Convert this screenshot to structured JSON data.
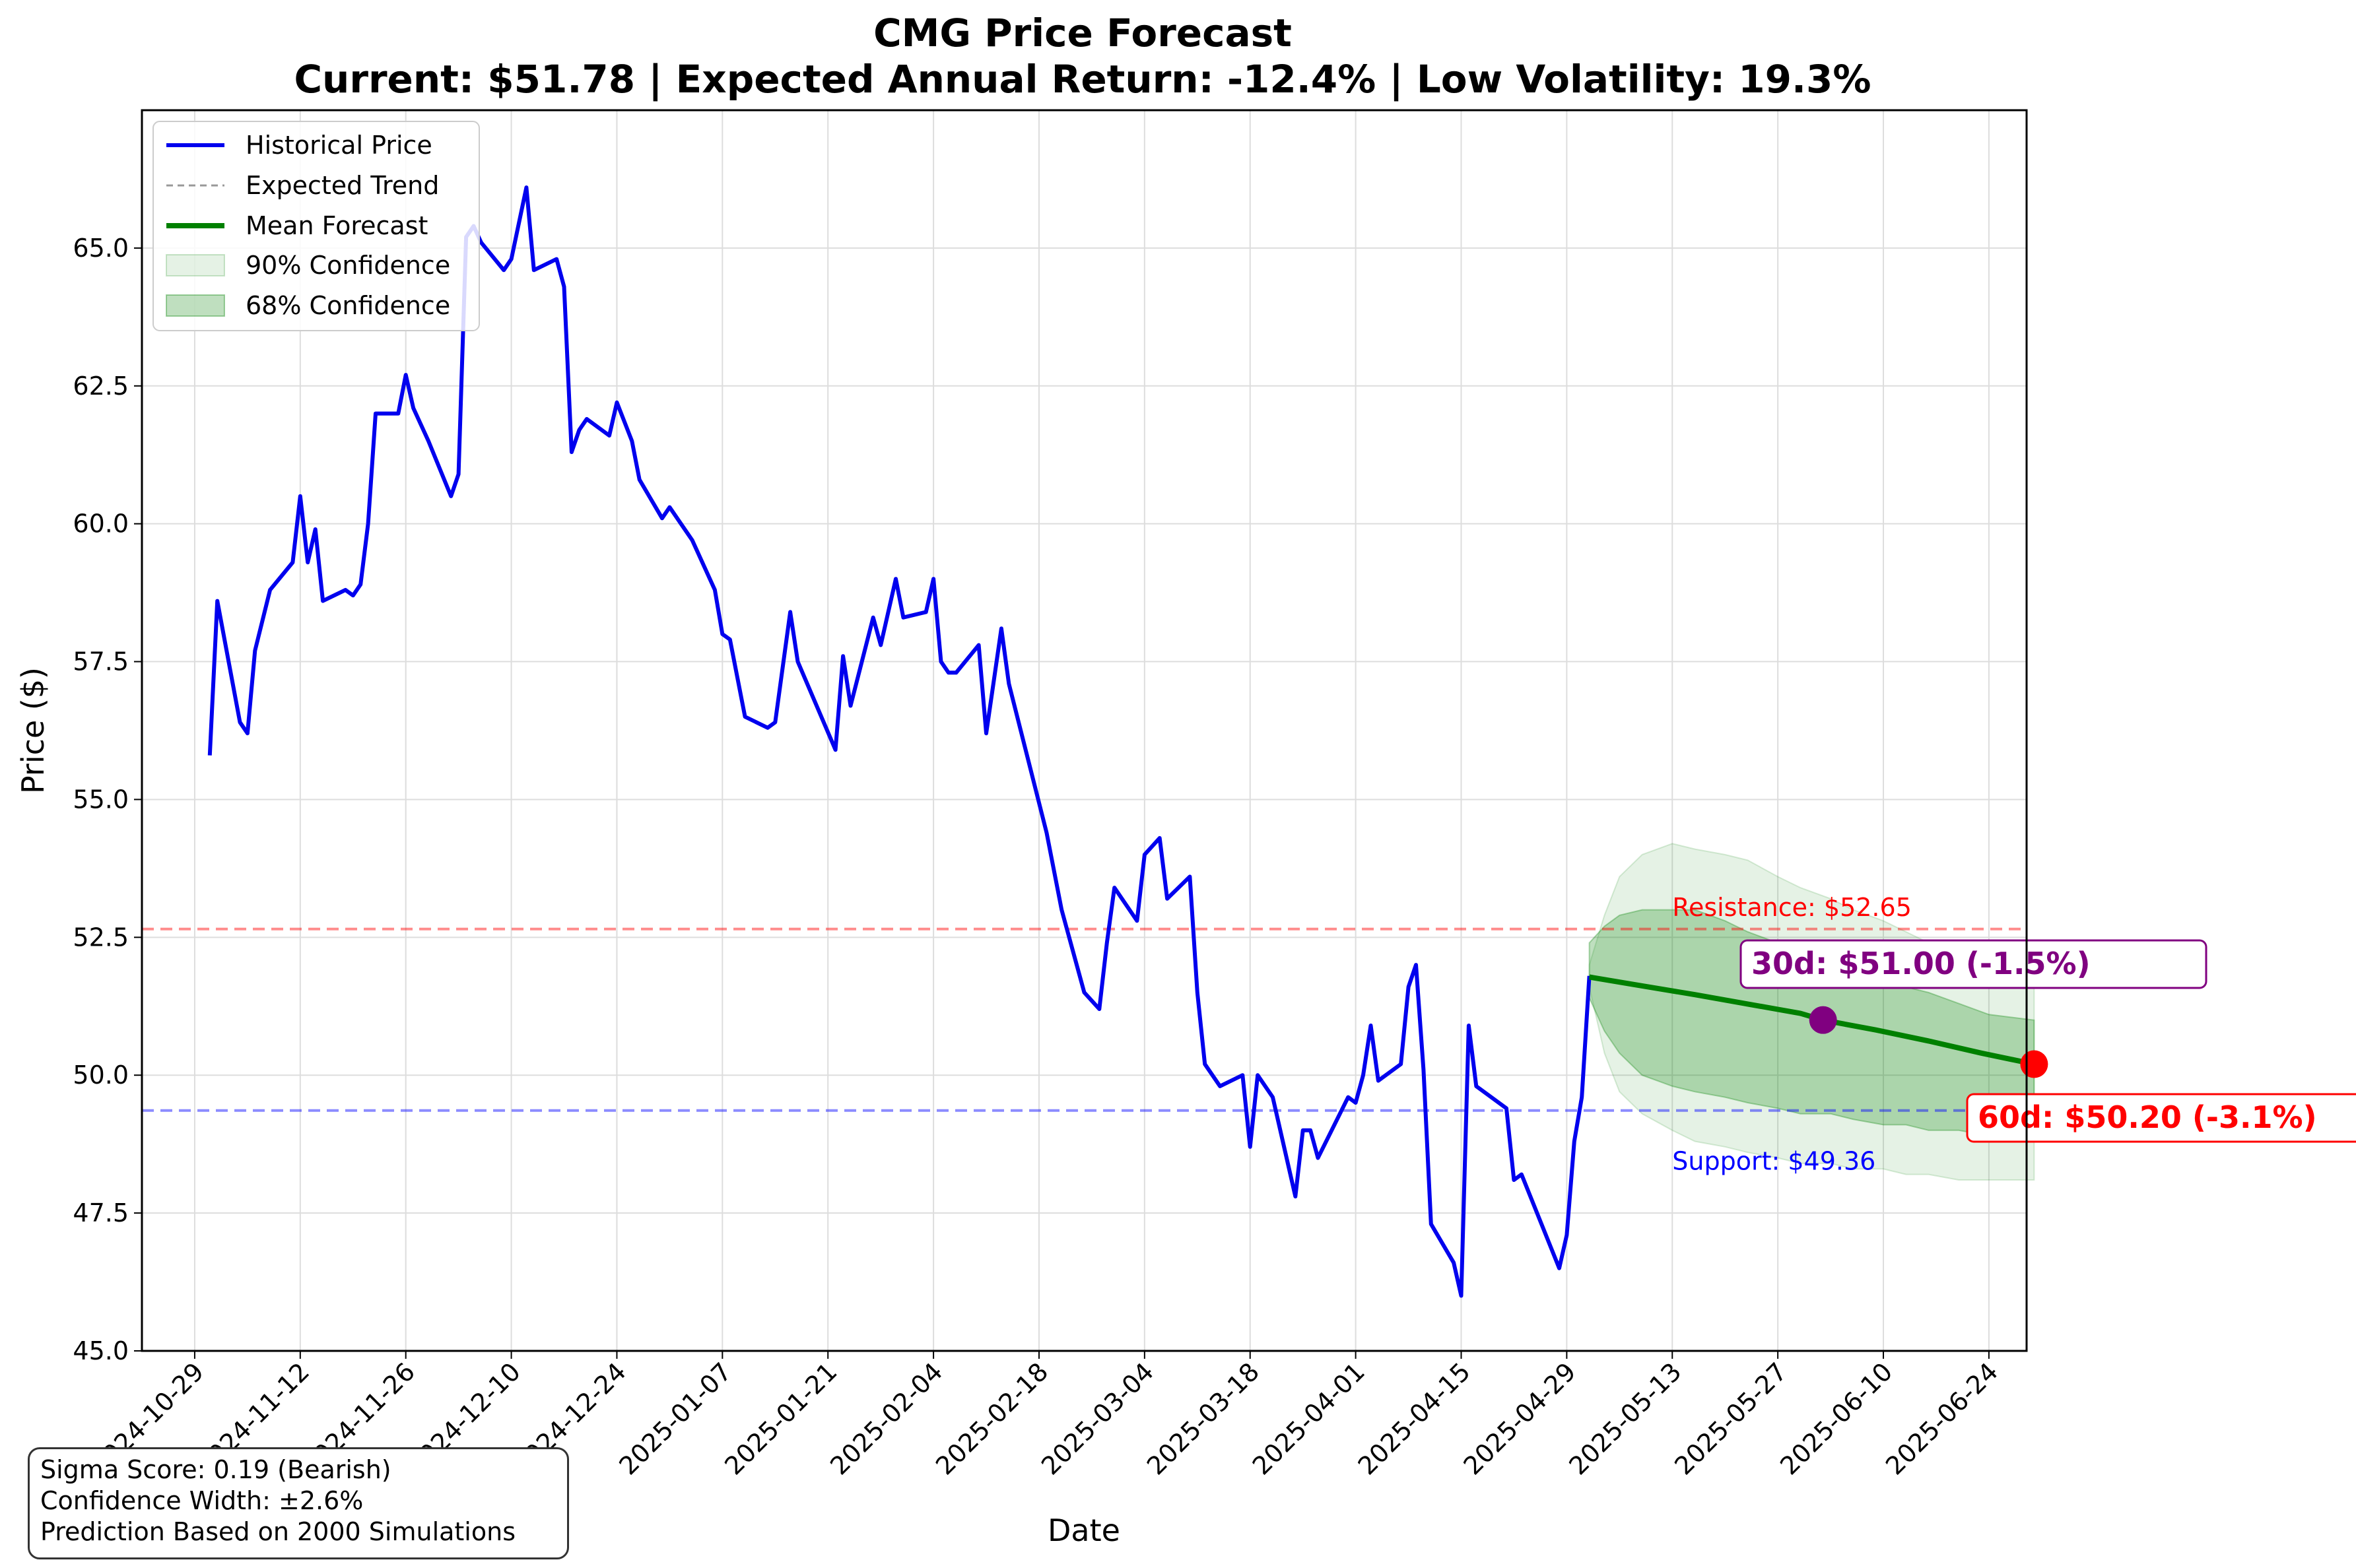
{
  "title": "CMG Price Forecast",
  "subtitle": "Current: $51.78 | Expected Annual Return: -12.4% | Low Volatility: 19.3%",
  "info_box": {
    "line1": "Sigma Score: 0.19 (Bearish)",
    "line2": "Confidence Width: ±2.6%",
    "line3": "Prediction Based on 2000 Simulations"
  },
  "colors": {
    "historical": "#0000ee",
    "mean_forecast": "#008000",
    "band_90": "#008000",
    "band_68": "#008000",
    "resistance": "#ff0000",
    "support": "#0000ff",
    "marker_30d": "#800080",
    "marker_60d": "#ff0000",
    "trend": "#999999"
  },
  "chart_data": {
    "type": "line",
    "xlabel": "Date",
    "ylabel": "Price ($)",
    "xlim": [
      "2024-10-22",
      "2025-06-29"
    ],
    "ylim": [
      45.0,
      67.5
    ],
    "grid": true,
    "legend_position": "top-left",
    "x_ticks": [
      "2024-10-29",
      "2024-11-12",
      "2024-11-26",
      "2024-12-10",
      "2024-12-24",
      "2025-01-07",
      "2025-01-21",
      "2025-02-04",
      "2025-02-18",
      "2025-03-04",
      "2025-03-18",
      "2025-04-01",
      "2025-04-15",
      "2025-04-29",
      "2025-05-13",
      "2025-05-27",
      "2025-06-10",
      "2025-06-24"
    ],
    "y_ticks": [
      "45.0",
      "47.5",
      "50.0",
      "52.5",
      "55.0",
      "57.5",
      "60.0",
      "62.5",
      "65.0"
    ],
    "legend": [
      "Historical Price",
      "Expected Trend",
      "Mean Forecast",
      "90% Confidence",
      "68% Confidence"
    ],
    "historical": [
      [
        "2024-10-31",
        55.8
      ],
      [
        "2024-11-01",
        58.6
      ],
      [
        "2024-11-04",
        56.4
      ],
      [
        "2024-11-05",
        56.2
      ],
      [
        "2024-11-06",
        57.7
      ],
      [
        "2024-11-08",
        58.8
      ],
      [
        "2024-11-11",
        59.3
      ],
      [
        "2024-11-12",
        60.5
      ],
      [
        "2024-11-13",
        59.3
      ],
      [
        "2024-11-14",
        59.9
      ],
      [
        "2024-11-15",
        58.6
      ],
      [
        "2024-11-18",
        58.8
      ],
      [
        "2024-11-19",
        58.7
      ],
      [
        "2024-11-20",
        58.9
      ],
      [
        "2024-11-21",
        60.0
      ],
      [
        "2024-11-22",
        62.0
      ],
      [
        "2024-11-25",
        62.0
      ],
      [
        "2024-11-26",
        62.7
      ],
      [
        "2024-11-27",
        62.1
      ],
      [
        "2024-11-29",
        61.5
      ],
      [
        "2024-12-02",
        60.5
      ],
      [
        "2024-12-03",
        60.9
      ],
      [
        "2024-12-04",
        65.2
      ],
      [
        "2024-12-05",
        65.4
      ],
      [
        "2024-12-06",
        65.1
      ],
      [
        "2024-12-09",
        64.6
      ],
      [
        "2024-12-10",
        64.8
      ],
      [
        "2024-12-12",
        66.1
      ],
      [
        "2024-12-13",
        64.6
      ],
      [
        "2024-12-16",
        64.8
      ],
      [
        "2024-12-17",
        64.3
      ],
      [
        "2024-12-18",
        61.3
      ],
      [
        "2024-12-19",
        61.7
      ],
      [
        "2024-12-20",
        61.9
      ],
      [
        "2024-12-23",
        61.6
      ],
      [
        "2024-12-24",
        62.2
      ],
      [
        "2024-12-26",
        61.5
      ],
      [
        "2024-12-27",
        60.8
      ],
      [
        "2024-12-30",
        60.1
      ],
      [
        "2024-12-31",
        60.3
      ],
      [
        "2025-01-03",
        59.7
      ],
      [
        "2025-01-06",
        58.8
      ],
      [
        "2025-01-07",
        58.0
      ],
      [
        "2025-01-08",
        57.9
      ],
      [
        "2025-01-10",
        56.5
      ],
      [
        "2025-01-13",
        56.3
      ],
      [
        "2025-01-14",
        56.4
      ],
      [
        "2025-01-16",
        58.4
      ],
      [
        "2025-01-17",
        57.5
      ],
      [
        "2025-01-22",
        55.9
      ],
      [
        "2025-01-23",
        57.6
      ],
      [
        "2025-01-24",
        56.7
      ],
      [
        "2025-01-27",
        58.3
      ],
      [
        "2025-01-28",
        57.8
      ],
      [
        "2025-01-30",
        59.0
      ],
      [
        "2025-01-31",
        58.3
      ],
      [
        "2025-02-03",
        58.4
      ],
      [
        "2025-02-04",
        59.0
      ],
      [
        "2025-02-05",
        57.5
      ],
      [
        "2025-02-06",
        57.3
      ],
      [
        "2025-02-07",
        57.3
      ],
      [
        "2025-02-10",
        57.8
      ],
      [
        "2025-02-11",
        56.2
      ],
      [
        "2025-02-13",
        58.1
      ],
      [
        "2025-02-14",
        57.1
      ],
      [
        "2025-02-19",
        54.4
      ],
      [
        "2025-02-20",
        53.7
      ],
      [
        "2025-02-21",
        53.0
      ],
      [
        "2025-02-24",
        51.5
      ],
      [
        "2025-02-26",
        51.2
      ],
      [
        "2025-02-27",
        52.4
      ],
      [
        "2025-02-28",
        53.4
      ],
      [
        "2025-03-03",
        52.8
      ],
      [
        "2025-03-04",
        54.0
      ],
      [
        "2025-03-06",
        54.3
      ],
      [
        "2025-03-07",
        53.2
      ],
      [
        "2025-03-10",
        53.6
      ],
      [
        "2025-03-11",
        51.5
      ],
      [
        "2025-03-12",
        50.2
      ],
      [
        "2025-03-14",
        49.8
      ],
      [
        "2025-03-17",
        50.0
      ],
      [
        "2025-03-18",
        48.7
      ],
      [
        "2025-03-19",
        50.0
      ],
      [
        "2025-03-21",
        49.6
      ],
      [
        "2025-03-24",
        47.8
      ],
      [
        "2025-03-25",
        49.0
      ],
      [
        "2025-03-26",
        49.0
      ],
      [
        "2025-03-27",
        48.5
      ],
      [
        "2025-03-31",
        49.6
      ],
      [
        "2025-04-01",
        49.5
      ],
      [
        "2025-04-02",
        50.0
      ],
      [
        "2025-04-03",
        50.9
      ],
      [
        "2025-04-04",
        49.9
      ],
      [
        "2025-04-07",
        50.2
      ],
      [
        "2025-04-08",
        51.6
      ],
      [
        "2025-04-09",
        52.0
      ],
      [
        "2025-04-10",
        50.1
      ],
      [
        "2025-04-11",
        47.3
      ],
      [
        "2025-04-14",
        46.6
      ],
      [
        "2025-04-15",
        46.0
      ],
      [
        "2025-04-16",
        50.9
      ],
      [
        "2025-04-17",
        49.8
      ],
      [
        "2025-04-21",
        49.4
      ],
      [
        "2025-04-22",
        48.1
      ],
      [
        "2025-04-23",
        48.2
      ],
      [
        "2025-04-28",
        46.5
      ],
      [
        "2025-04-29",
        47.1
      ],
      [
        "2025-04-30",
        48.8
      ],
      [
        "2025-05-01",
        49.6
      ],
      [
        "2025-05-02",
        51.8
      ]
    ],
    "mean_forecast": [
      [
        "2025-05-02",
        51.78
      ],
      [
        "2025-05-09",
        51.62
      ],
      [
        "2025-05-16",
        51.46
      ],
      [
        "2025-05-23",
        51.29
      ],
      [
        "2025-05-30",
        51.12
      ],
      [
        "2025-06-02",
        51.0
      ],
      [
        "2025-06-09",
        50.82
      ],
      [
        "2025-06-16",
        50.62
      ],
      [
        "2025-06-23",
        50.4
      ],
      [
        "2025-06-30",
        50.2
      ]
    ],
    "band_90": [
      [
        "2025-05-02",
        52.0,
        51.6
      ],
      [
        "2025-05-04",
        52.9,
        50.4
      ],
      [
        "2025-05-06",
        53.6,
        49.7
      ],
      [
        "2025-05-09",
        54.0,
        49.3
      ],
      [
        "2025-05-13",
        54.2,
        49.0
      ],
      [
        "2025-05-16",
        54.1,
        48.8
      ],
      [
        "2025-05-20",
        54.0,
        48.7
      ],
      [
        "2025-05-23",
        53.9,
        48.6
      ],
      [
        "2025-05-27",
        53.6,
        48.5
      ],
      [
        "2025-05-30",
        53.4,
        48.4
      ],
      [
        "2025-06-03",
        53.2,
        48.4
      ],
      [
        "2025-06-06",
        53.0,
        48.3
      ],
      [
        "2025-06-10",
        52.8,
        48.3
      ],
      [
        "2025-06-13",
        52.6,
        48.2
      ],
      [
        "2025-06-16",
        52.4,
        48.2
      ],
      [
        "2025-06-20",
        52.2,
        48.1
      ],
      [
        "2025-06-24",
        52.0,
        48.1
      ],
      [
        "2025-06-30",
        51.9,
        48.1
      ]
    ],
    "band_68": [
      [
        "2025-05-02",
        52.4,
        51.4
      ],
      [
        "2025-05-04",
        52.7,
        50.8
      ],
      [
        "2025-05-06",
        52.9,
        50.4
      ],
      [
        "2025-05-09",
        53.0,
        50.0
      ],
      [
        "2025-05-13",
        53.0,
        49.8
      ],
      [
        "2025-05-16",
        53.0,
        49.7
      ],
      [
        "2025-05-20",
        52.8,
        49.6
      ],
      [
        "2025-05-23",
        52.6,
        49.5
      ],
      [
        "2025-05-27",
        52.4,
        49.4
      ],
      [
        "2025-05-30",
        52.3,
        49.3
      ],
      [
        "2025-06-03",
        52.1,
        49.3
      ],
      [
        "2025-06-06",
        52.0,
        49.2
      ],
      [
        "2025-06-10",
        51.8,
        49.1
      ],
      [
        "2025-06-13",
        51.6,
        49.1
      ],
      [
        "2025-06-16",
        51.5,
        49.0
      ],
      [
        "2025-06-20",
        51.3,
        49.0
      ],
      [
        "2025-06-24",
        51.1,
        48.9
      ],
      [
        "2025-06-30",
        51.0,
        48.9
      ]
    ],
    "resistance": {
      "value": 52.65,
      "label": "Resistance: $52.65"
    },
    "support": {
      "value": 49.36,
      "label": "Support: $49.36"
    },
    "markers": [
      {
        "date": "2025-06-02",
        "value": 51.0,
        "label": "30d: $51.00 (-1.5%)",
        "key": "marker_30d"
      },
      {
        "date": "2025-06-30",
        "value": 50.2,
        "label": "60d: $50.20 (-3.1%)",
        "key": "marker_60d"
      }
    ]
  }
}
